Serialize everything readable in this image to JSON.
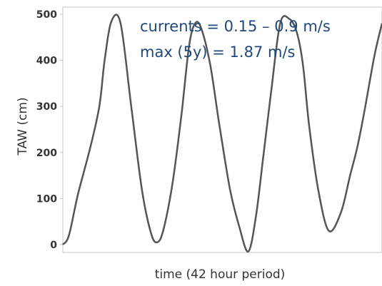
{
  "chart_data": {
    "type": "line",
    "title": "",
    "xlabel": "time (42 hour period)",
    "ylabel": "TAW (cm)",
    "ylim": [
      -10,
      510
    ],
    "xlim": [
      0,
      42
    ],
    "yticks": [
      0,
      100,
      200,
      300,
      400,
      500
    ],
    "xticks": [],
    "grid": false,
    "legend": "none",
    "annotations": [
      "currents = 0.15 – 0.9 m/s",
      "max (5y) = 1.87 m/s"
    ],
    "series": [
      {
        "color": "#555555",
        "x": [
          0.0,
          0.8,
          2.0,
          3.6,
          4.8,
          5.5,
          6.4,
          7.6,
          9.0,
          10.4,
          11.6,
          12.4,
          13.2,
          14.4,
          15.6,
          16.6,
          17.4,
          18.2,
          19.4,
          20.6,
          22.0,
          23.2,
          24.4,
          25.4,
          26.3,
          27.4,
          28.6,
          29.8,
          30.8,
          31.6,
          32.4,
          33.6,
          35.0,
          36.6,
          37.8,
          38.8,
          39.8,
          41.0,
          42.0
        ],
        "y": [
          0,
          20,
          110,
          210,
          300,
          400,
          485,
          480,
          300,
          120,
          25,
          5,
          30,
          130,
          280,
          430,
          480,
          470,
          390,
          260,
          120,
          40,
          -15,
          60,
          180,
          330,
          480,
          490,
          460,
          390,
          260,
          120,
          30,
          70,
          150,
          215,
          300,
          410,
          480
        ]
      }
    ]
  }
}
